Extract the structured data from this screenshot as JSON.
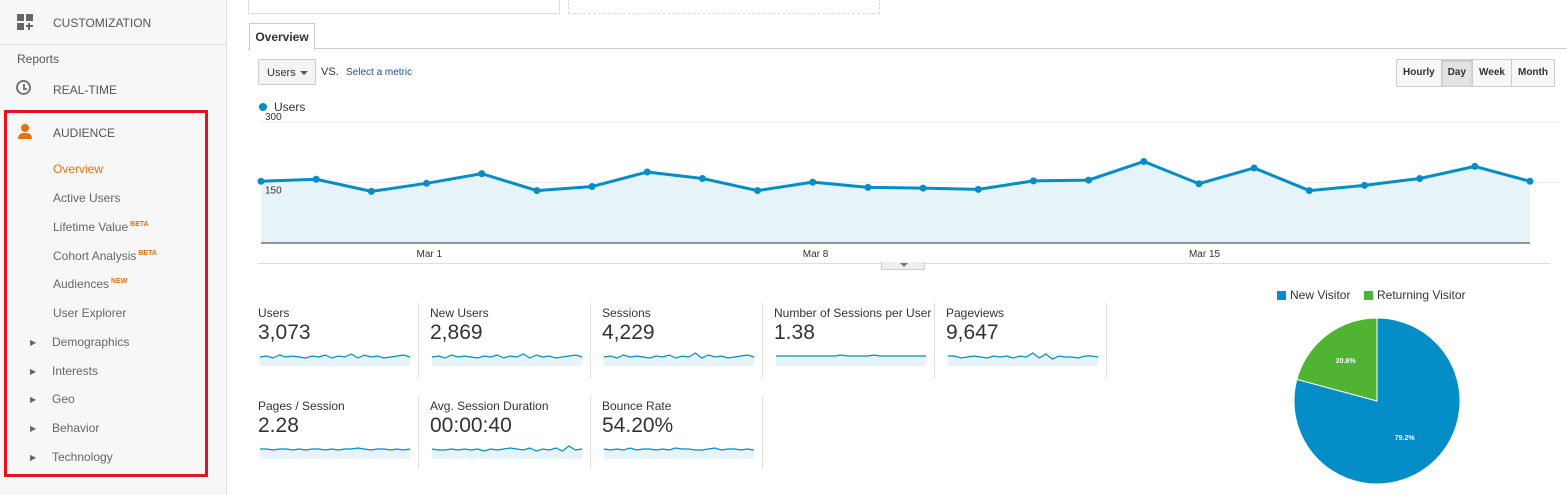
{
  "sidebar": {
    "customization_label": "CUSTOMIZATION",
    "reports_label": "Reports",
    "realtime_label": "REAL-TIME",
    "audience_label": "AUDIENCE",
    "items": [
      {
        "label": "Overview",
        "badge": ""
      },
      {
        "label": "Active Users",
        "badge": ""
      },
      {
        "label": "Lifetime Value",
        "badge": "BETA"
      },
      {
        "label": "Cohort Analysis",
        "badge": "BETA"
      },
      {
        "label": "Audiences",
        "badge": "NEW"
      },
      {
        "label": "User Explorer",
        "badge": ""
      },
      {
        "label": "Demographics",
        "badge": ""
      },
      {
        "label": "Interests",
        "badge": ""
      },
      {
        "label": "Geo",
        "badge": ""
      },
      {
        "label": "Behavior",
        "badge": ""
      },
      {
        "label": "Technology",
        "badge": ""
      }
    ]
  },
  "main": {
    "tab_label": "Overview",
    "metric_select": "Users",
    "vs_label": "VS.",
    "select_metric_link": "Select a metric",
    "granularity": [
      "Hourly",
      "Day",
      "Week",
      "Month"
    ],
    "granularity_selected": "Day"
  },
  "metrics": [
    {
      "name": "Users",
      "value": "3,073"
    },
    {
      "name": "New Users",
      "value": "2,869"
    },
    {
      "name": "Sessions",
      "value": "4,229"
    },
    {
      "name": "Number of Sessions per User",
      "value": "1.38"
    },
    {
      "name": "Pageviews",
      "value": "9,647"
    },
    {
      "name": "Pages / Session",
      "value": "2.28"
    },
    {
      "name": "Avg. Session Duration",
      "value": "00:00:40"
    },
    {
      "name": "Bounce Rate",
      "value": "54.20%"
    }
  ],
  "colors": {
    "accent_orange": "#e8710a",
    "highlight_red": "#e3141f",
    "series_blue": "#058dc7",
    "returning_green": "#50b432"
  },
  "chart_data": [
    {
      "type": "line",
      "series": [
        {
          "name": "Users",
          "values": [
            153,
            158,
            128,
            148,
            172,
            130,
            140,
            176,
            160,
            130,
            151,
            138,
            136,
            133,
            154,
            156,
            202,
            147,
            186,
            130,
            143,
            160,
            190,
            153
          ]
        }
      ],
      "x_tick_labels": [
        "Mar 1",
        "Mar 8",
        "Mar 15"
      ],
      "y_tick_labels": [
        "300",
        "150"
      ],
      "ylim": [
        0,
        300
      ]
    },
    {
      "type": "pie",
      "categories": [
        "New Visitor",
        "Returning Visitor"
      ],
      "values": [
        79.2,
        20.8
      ],
      "labels": [
        "79.2%",
        "20.8%"
      ]
    }
  ]
}
